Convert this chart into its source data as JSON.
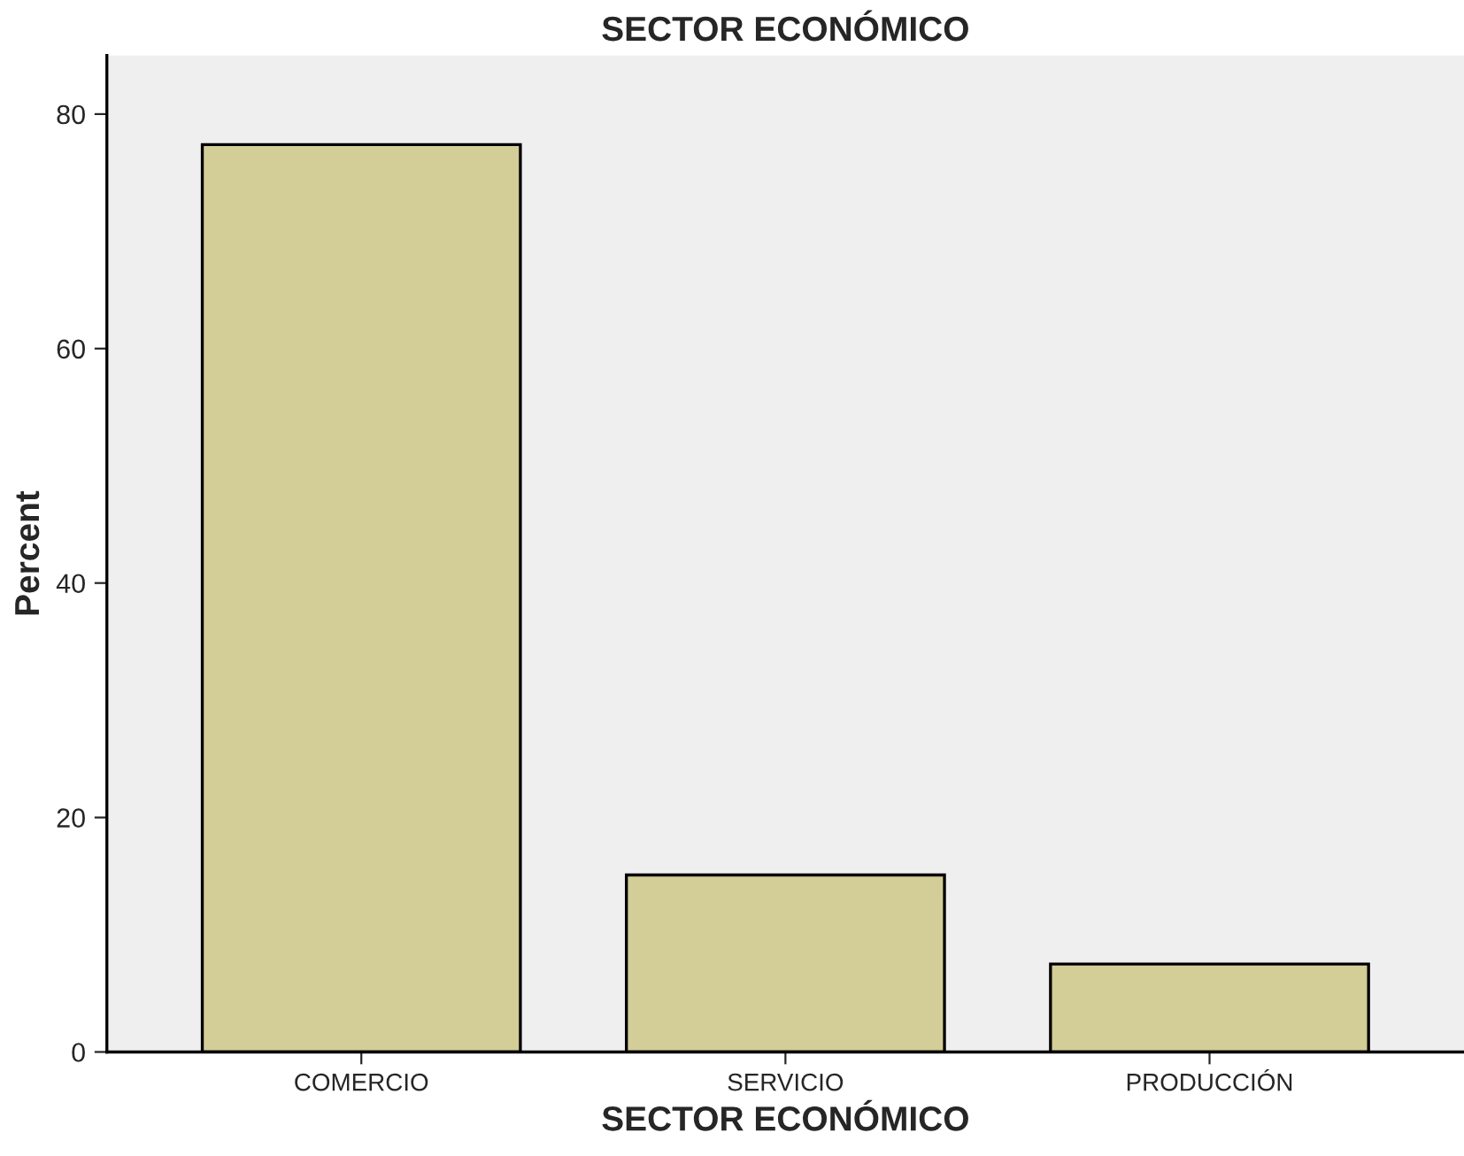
{
  "chart_data": {
    "type": "bar",
    "title": "SECTOR ECONÓMICO",
    "xlabel": "SECTOR ECONÓMICO",
    "ylabel": "Percent",
    "categories": [
      "COMERCIO",
      "SERVICIO",
      "PRODUCCIÓN"
    ],
    "values": [
      77.4,
      15.1,
      7.5
    ],
    "color": "#d3ce97",
    "ylim": [
      0,
      85
    ],
    "yticks": [
      0,
      20,
      40,
      60,
      80
    ],
    "grid": false,
    "legend": false
  }
}
